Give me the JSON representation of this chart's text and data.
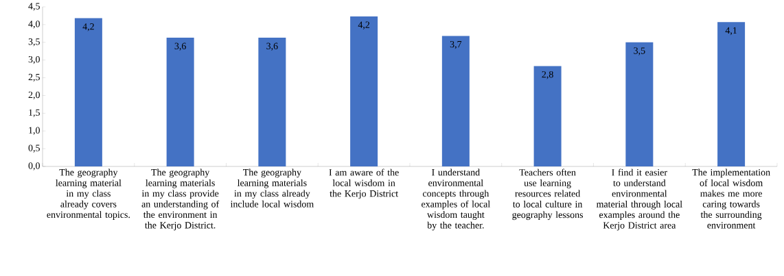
{
  "chart_data": {
    "type": "bar",
    "categories": [
      "The geography learning material in my class already covers environmental topics.",
      "The geography learning materials in my class provide an understanding of the environment in the Kerjo District.",
      "The geography learning materials in my class already include local wisdom",
      "I am aware of the local wisdom in the Kerjo District",
      "I understand environmental concepts through examples of local wisdom taught by the teacher.",
      "Teachers often use learning resources related to local culture in geography lessons",
      "I find it easier to understand environmental material through local examples around the Kerjo District area",
      "The implementation of local wisdom makes me more caring towards the surrounding environment"
    ],
    "values": [
      4.18,
      3.63,
      3.63,
      4.23,
      3.68,
      2.83,
      3.5,
      4.07
    ],
    "value_labels": [
      "4,2",
      "3,6",
      "3,6",
      "4,2",
      "3,7",
      "2,8",
      "3,5",
      "4,1"
    ],
    "color": "#4472c4",
    "ylim": [
      0,
      4.5
    ],
    "yticks": [
      {
        "value": 0,
        "label": "0,0"
      },
      {
        "value": 0.5,
        "label": "0,5"
      },
      {
        "value": 1,
        "label": "1,0"
      },
      {
        "value": 1.5,
        "label": "1,5"
      },
      {
        "value": 2,
        "label": "2,0"
      },
      {
        "value": 2.5,
        "label": "2,5"
      },
      {
        "value": 3,
        "label": "3,0"
      },
      {
        "value": 3.5,
        "label": "3,5"
      },
      {
        "value": 4,
        "label": "4,0"
      },
      {
        "value": 4.5,
        "label": "4,5"
      }
    ],
    "grid": false
  }
}
